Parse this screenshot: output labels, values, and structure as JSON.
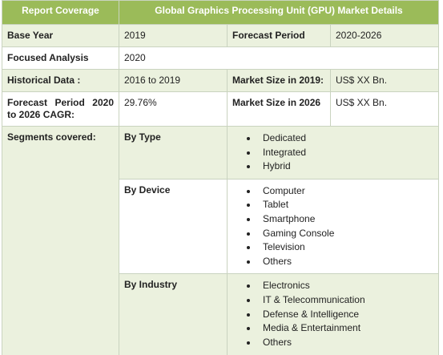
{
  "table": {
    "header": [
      "Report Coverage",
      "Global Graphics Processing Unit (GPU) Market Details"
    ],
    "rows": [
      [
        "Base Year",
        "2019",
        "Forecast Period",
        "2020-2026"
      ],
      [
        "Focused Analysis",
        "2020"
      ],
      [
        "Historical Data :",
        "2016 to 2019",
        "Market Size in 2019:",
        "US$ XX Bn."
      ],
      [
        "Forecast Period 2020 to 2026 CAGR:",
        "29.76%",
        "Market Size in 2026",
        "US$ XX Bn."
      ]
    ],
    "segments": {
      "label": "Segments covered:",
      "groups": [
        {
          "name": "By Type",
          "items": [
            "Dedicated",
            "Integrated",
            "Hybrid"
          ]
        },
        {
          "name": "By Device",
          "items": [
            "Computer",
            "Tablet",
            "Smartphone",
            "Gaming Console",
            "Television",
            "Others"
          ]
        },
        {
          "name": "By Industry",
          "items": [
            "Electronics",
            "IT & Telecommunication",
            "Defense & Intelligence",
            "Media & Entertainment",
            "Others"
          ]
        }
      ]
    }
  }
}
